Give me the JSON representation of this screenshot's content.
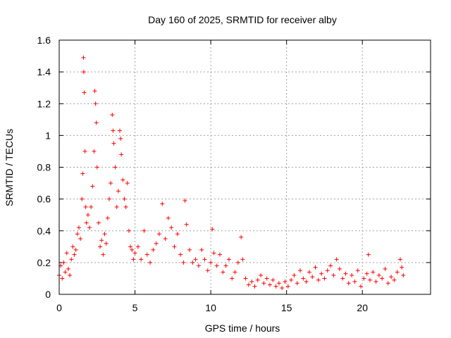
{
  "chart_data": {
    "type": "scatter",
    "title": "Day 160 of 2025, SRMTID for receiver alby",
    "xlabel": "GPS time / hours",
    "ylabel": "SRMTID / TECUs",
    "xlim": [
      0,
      24.5
    ],
    "ylim": [
      0,
      1.6
    ],
    "xticks": [
      0,
      5,
      10,
      15,
      20
    ],
    "xtick_labels": [
      "0",
      "5",
      "10",
      "15",
      "20"
    ],
    "yticks": [
      0,
      0.2,
      0.4,
      0.6,
      0.8,
      1.0,
      1.2,
      1.4,
      1.6
    ],
    "ytick_labels": [
      "0",
      "0.2",
      "0.4",
      "0.6",
      "0.8",
      "1",
      "1.2",
      "1.4",
      "1.6"
    ],
    "grid": true,
    "marker": "+",
    "color": "#ff0000",
    "series": [
      {
        "name": "SRMTID",
        "points": [
          [
            0.0,
            0.12
          ],
          [
            0.1,
            0.18
          ],
          [
            0.2,
            0.1
          ],
          [
            0.3,
            0.2
          ],
          [
            0.4,
            0.14
          ],
          [
            0.5,
            0.26
          ],
          [
            0.6,
            0.16
          ],
          [
            0.7,
            0.12
          ],
          [
            0.8,
            0.22
          ],
          [
            0.9,
            0.3
          ],
          [
            1.0,
            0.25
          ],
          [
            1.1,
            0.28
          ],
          [
            1.2,
            0.38
          ],
          [
            1.3,
            0.42
          ],
          [
            1.4,
            0.35
          ],
          [
            1.5,
            0.6
          ],
          [
            1.55,
            0.76
          ],
          [
            1.6,
            1.49
          ],
          [
            1.62,
            1.4
          ],
          [
            1.65,
            1.27
          ],
          [
            1.7,
            0.9
          ],
          [
            1.75,
            0.55
          ],
          [
            1.8,
            0.45
          ],
          [
            1.9,
            0.5
          ],
          [
            2.0,
            0.42
          ],
          [
            2.1,
            0.55
          ],
          [
            2.2,
            0.68
          ],
          [
            2.3,
            0.9
          ],
          [
            2.35,
            1.28
          ],
          [
            2.4,
            1.2
          ],
          [
            2.45,
            1.08
          ],
          [
            2.5,
            0.8
          ],
          [
            2.6,
            0.45
          ],
          [
            2.7,
            0.3
          ],
          [
            2.8,
            0.34
          ],
          [
            2.9,
            0.25
          ],
          [
            3.0,
            0.38
          ],
          [
            3.1,
            0.32
          ],
          [
            3.2,
            0.48
          ],
          [
            3.3,
            0.6
          ],
          [
            3.4,
            0.7
          ],
          [
            3.5,
            1.13
          ],
          [
            3.55,
            1.03
          ],
          [
            3.6,
            0.95
          ],
          [
            3.7,
            0.8
          ],
          [
            3.8,
            0.55
          ],
          [
            3.9,
            0.65
          ],
          [
            4.0,
            1.03
          ],
          [
            4.05,
            0.98
          ],
          [
            4.1,
            0.88
          ],
          [
            4.2,
            0.72
          ],
          [
            4.3,
            0.6
          ],
          [
            4.4,
            0.55
          ],
          [
            4.5,
            0.7
          ],
          [
            4.6,
            0.4
          ],
          [
            4.7,
            0.3
          ],
          [
            4.8,
            0.28
          ],
          [
            4.9,
            0.22
          ],
          [
            5.0,
            0.26
          ],
          [
            5.2,
            0.3
          ],
          [
            5.4,
            0.22
          ],
          [
            5.6,
            0.4
          ],
          [
            5.8,
            0.25
          ],
          [
            6.0,
            0.2
          ],
          [
            6.2,
            0.28
          ],
          [
            6.4,
            0.32
          ],
          [
            6.6,
            0.38
          ],
          [
            6.8,
            0.57
          ],
          [
            7.0,
            0.35
          ],
          [
            7.2,
            0.48
          ],
          [
            7.4,
            0.42
          ],
          [
            7.6,
            0.3
          ],
          [
            7.8,
            0.38
          ],
          [
            8.0,
            0.25
          ],
          [
            8.2,
            0.2
          ],
          [
            8.3,
            0.59
          ],
          [
            8.4,
            0.44
          ],
          [
            8.6,
            0.28
          ],
          [
            8.8,
            0.2
          ],
          [
            9.0,
            0.22
          ],
          [
            9.2,
            0.18
          ],
          [
            9.4,
            0.28
          ],
          [
            9.6,
            0.22
          ],
          [
            9.8,
            0.15
          ],
          [
            10.0,
            0.2
          ],
          [
            10.1,
            0.41
          ],
          [
            10.2,
            0.26
          ],
          [
            10.4,
            0.18
          ],
          [
            10.6,
            0.25
          ],
          [
            10.8,
            0.14
          ],
          [
            11.0,
            0.18
          ],
          [
            11.2,
            0.22
          ],
          [
            11.4,
            0.1
          ],
          [
            11.6,
            0.14
          ],
          [
            11.8,
            0.2
          ],
          [
            12.0,
            0.36
          ],
          [
            12.1,
            0.22
          ],
          [
            12.3,
            0.1
          ],
          [
            12.5,
            0.06
          ],
          [
            12.7,
            0.08
          ],
          [
            12.9,
            0.05
          ],
          [
            13.1,
            0.09
          ],
          [
            13.3,
            0.12
          ],
          [
            13.5,
            0.07
          ],
          [
            13.7,
            0.1
          ],
          [
            13.9,
            0.06
          ],
          [
            14.1,
            0.09
          ],
          [
            14.3,
            0.05
          ],
          [
            14.5,
            0.07
          ],
          [
            14.7,
            0.04
          ],
          [
            14.9,
            0.08
          ],
          [
            15.1,
            0.05
          ],
          [
            15.3,
            0.09
          ],
          [
            15.5,
            0.12
          ],
          [
            15.7,
            0.07
          ],
          [
            15.9,
            0.15
          ],
          [
            16.1,
            0.1
          ],
          [
            16.3,
            0.08
          ],
          [
            16.5,
            0.14
          ],
          [
            16.7,
            0.11
          ],
          [
            16.9,
            0.17
          ],
          [
            17.1,
            0.09
          ],
          [
            17.3,
            0.13
          ],
          [
            17.5,
            0.1
          ],
          [
            17.7,
            0.15
          ],
          [
            17.9,
            0.18
          ],
          [
            18.1,
            0.12
          ],
          [
            18.3,
            0.22
          ],
          [
            18.5,
            0.16
          ],
          [
            18.7,
            0.1
          ],
          [
            18.9,
            0.13
          ],
          [
            19.1,
            0.07
          ],
          [
            19.3,
            0.12
          ],
          [
            19.5,
            0.08
          ],
          [
            19.7,
            0.15
          ],
          [
            19.9,
            0.05
          ],
          [
            20.1,
            0.1
          ],
          [
            20.3,
            0.13
          ],
          [
            20.4,
            0.25
          ],
          [
            20.5,
            0.09
          ],
          [
            20.7,
            0.14
          ],
          [
            20.9,
            0.08
          ],
          [
            21.1,
            0.12
          ],
          [
            21.3,
            0.1
          ],
          [
            21.5,
            0.16
          ],
          [
            21.7,
            0.07
          ],
          [
            21.9,
            0.11
          ],
          [
            22.1,
            0.09
          ],
          [
            22.3,
            0.14
          ],
          [
            22.5,
            0.22
          ],
          [
            22.6,
            0.17
          ],
          [
            22.7,
            0.12
          ]
        ]
      }
    ]
  }
}
